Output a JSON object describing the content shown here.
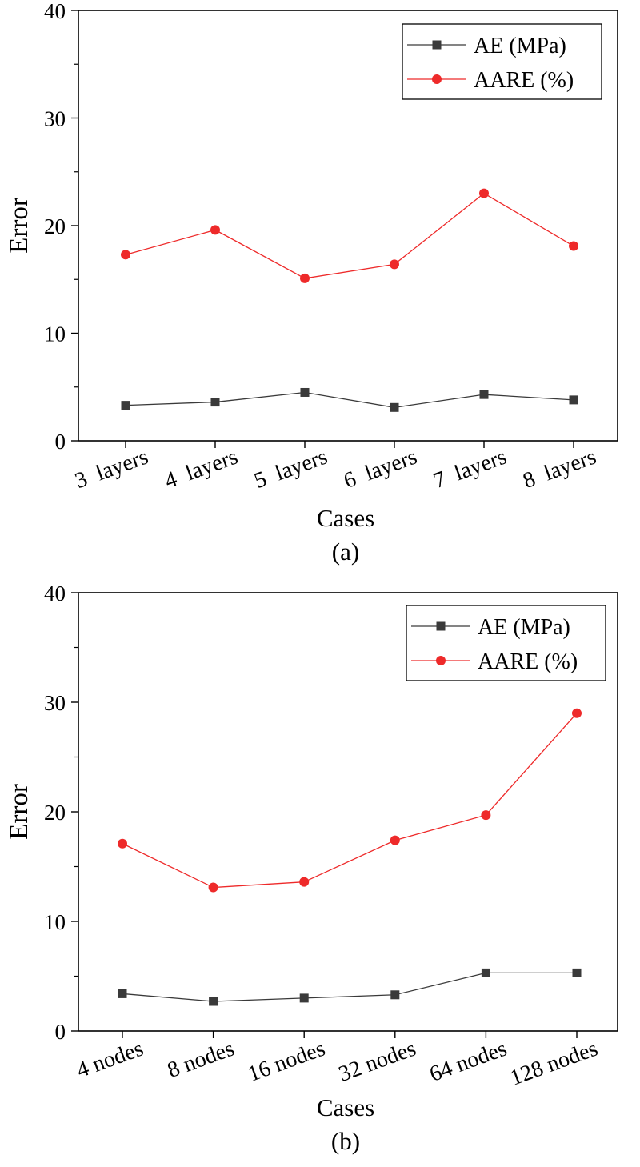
{
  "chart_data": [
    {
      "type": "line",
      "xlabel": "Cases",
      "ylabel": "Error",
      "caption": "(a)",
      "ylim": [
        0,
        40
      ],
      "yticks": [
        0,
        10,
        20,
        30,
        40
      ],
      "categories": [
        "3  layers",
        "4  layers",
        "5  layers",
        "6  layers",
        "7  layers",
        "8  layers"
      ],
      "legend_position": "top-right",
      "grid": false,
      "series": [
        {
          "name": "AE (MPa)",
          "color": "#3a3a3a",
          "marker": "square",
          "values": [
            3.3,
            3.6,
            4.5,
            3.1,
            4.3,
            3.8
          ]
        },
        {
          "name": "AARE (%)",
          "color": "#ee2a2a",
          "marker": "circle",
          "values": [
            17.3,
            19.6,
            15.1,
            16.4,
            23.0,
            18.1
          ]
        }
      ]
    },
    {
      "type": "line",
      "xlabel": "Cases",
      "ylabel": "Error",
      "caption": "(b)",
      "ylim": [
        0,
        40
      ],
      "yticks": [
        0,
        10,
        20,
        30,
        40
      ],
      "categories": [
        "4 nodes",
        "8 nodes",
        "16 nodes",
        "32 nodes",
        "64 nodes",
        "128 nodes"
      ],
      "legend_position": "top-right",
      "grid": false,
      "series": [
        {
          "name": "AE (MPa)",
          "color": "#3a3a3a",
          "marker": "square",
          "values": [
            3.4,
            2.7,
            3.0,
            3.3,
            5.3,
            5.3
          ]
        },
        {
          "name": "AARE (%)",
          "color": "#ee2a2a",
          "marker": "circle",
          "values": [
            17.1,
            13.1,
            13.6,
            17.4,
            19.7,
            29.0
          ]
        }
      ]
    }
  ]
}
